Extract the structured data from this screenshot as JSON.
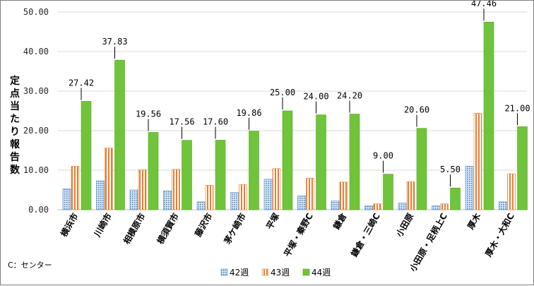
{
  "chart_data": {
    "type": "bar",
    "ylabel": "定点当たり報告数",
    "xlabel": "",
    "ylim": [
      0,
      50
    ],
    "ytick_labels": [
      "0.00",
      "10.00",
      "20.00",
      "30.00",
      "40.00",
      "50.00"
    ],
    "categories": [
      "横浜市",
      "川崎市",
      "相模原市",
      "横須賀市",
      "藤沢市",
      "茅ケ崎市",
      "平塚",
      "平塚・秦野C",
      "鎌倉",
      "鎌倉・三崎C",
      "小田原",
      "小田原・足柄上C",
      "厚木",
      "厚木・大和C"
    ],
    "series": [
      {
        "name": "42週",
        "color": "#9dc3e6",
        "values": [
          5.3,
          7.3,
          5.0,
          4.8,
          2.0,
          4.4,
          7.7,
          3.5,
          2.2,
          1.0,
          1.7,
          1.0,
          11.0,
          2.0
        ]
      },
      {
        "name": "43週",
        "color": "#ed7d31",
        "values": [
          11.0,
          15.6,
          10.1,
          10.2,
          6.2,
          6.4,
          10.4,
          8.0,
          7.0,
          1.5,
          7.1,
          1.5,
          24.4,
          9.1
        ]
      },
      {
        "name": "44週",
        "color": "#70c43a",
        "values": [
          27.42,
          37.83,
          19.56,
          17.56,
          17.6,
          19.86,
          25.0,
          24.0,
          24.2,
          9.0,
          20.6,
          5.5,
          47.46,
          21.0
        ]
      }
    ],
    "data_labels": [
      "27.42",
      "37.83",
      "19.56",
      "17.56",
      "17.60",
      "19.86",
      "25.00",
      "24.00",
      "24.20",
      "9.00",
      "20.60",
      "5.50",
      "47.46",
      "21.00"
    ],
    "annotation": "C：センター",
    "legend_position": "bottom",
    "grid": true
  }
}
